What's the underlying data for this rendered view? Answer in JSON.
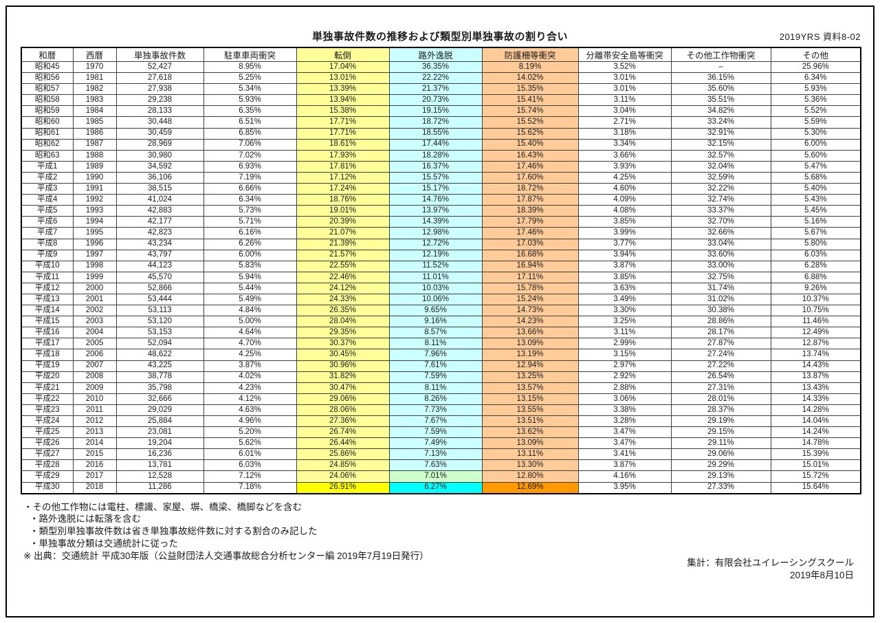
{
  "page": {
    "title": "単独事故件数の推移および類型別単独事故の割り合い",
    "doc_ref": "2019YRS 資料8-02"
  },
  "colors": {
    "col_tentou": "#FFFF99",
    "col_rogai": "#CCFFFF",
    "col_bougosaku": "#FFCC99",
    "highlight_yellow": "#FFFF00",
    "highlight_cyan": "#00FFFF",
    "highlight_orange": "#FF9900",
    "highlight_green": "#CCFFCC"
  },
  "table": {
    "columns": [
      {
        "label": "和暦",
        "bg": ""
      },
      {
        "label": "西暦",
        "bg": ""
      },
      {
        "label": "単独事故件数",
        "bg": ""
      },
      {
        "label": "駐車車両衝突",
        "bg": ""
      },
      {
        "label": "転倒",
        "bg": "#FFFF99"
      },
      {
        "label": "路外逸脱",
        "bg": "#CCFFFF"
      },
      {
        "label": "防護柵等衝突",
        "bg": "#FFCC99"
      },
      {
        "label": "分離帯安全島等衝突",
        "bg": ""
      },
      {
        "label": "その他工作物衝突",
        "bg": ""
      },
      {
        "label": "その他",
        "bg": ""
      }
    ],
    "rows": [
      [
        "昭和45",
        "1970",
        "52,427",
        "8.95%",
        "17.04%",
        "36.35%",
        "8.19%",
        "3.52%",
        "–",
        "25.96%"
      ],
      [
        "昭和56",
        "1981",
        "27,618",
        "5.25%",
        "13.01%",
        "22.22%",
        "14.02%",
        "3.01%",
        "36.15%",
        "6.34%"
      ],
      [
        "昭和57",
        "1982",
        "27,938",
        "5.34%",
        "13.39%",
        "21.37%",
        "15.35%",
        "3.01%",
        "35.60%",
        "5.93%"
      ],
      [
        "昭和58",
        "1983",
        "29,238",
        "5.93%",
        "13.94%",
        "20.73%",
        "15.41%",
        "3.11%",
        "35.51%",
        "5.36%"
      ],
      [
        "昭和59",
        "1984",
        "28,133",
        "6.35%",
        "15.38%",
        "19.15%",
        "15.74%",
        "3.04%",
        "34.82%",
        "5.52%"
      ],
      [
        "昭和60",
        "1985",
        "30,448",
        "6.51%",
        "17.71%",
        "18.72%",
        "15.52%",
        "2.71%",
        "33.24%",
        "5.59%"
      ],
      [
        "昭和61",
        "1986",
        "30,459",
        "6.85%",
        "17.71%",
        "18.55%",
        "15.62%",
        "3.18%",
        "32.91%",
        "5.30%"
      ],
      [
        "昭和62",
        "1987",
        "28,969",
        "7.06%",
        "18.61%",
        "17.44%",
        "15.40%",
        "3.34%",
        "32.15%",
        "6.00%"
      ],
      [
        "昭和63",
        "1988",
        "30,980",
        "7.02%",
        "17.93%",
        "18.28%",
        "16.43%",
        "3.66%",
        "32.57%",
        "5.60%"
      ],
      [
        "平成1",
        "1989",
        "34,592",
        "6.93%",
        "17.81%",
        "16.37%",
        "17.46%",
        "3.93%",
        "32.04%",
        "5.47%"
      ],
      [
        "平成2",
        "1990",
        "36,106",
        "7.19%",
        "17.12%",
        "15.57%",
        "17.60%",
        "4.25%",
        "32.59%",
        "5.68%"
      ],
      [
        "平成3",
        "1991",
        "38,515",
        "6.66%",
        "17.24%",
        "15.17%",
        "18.72%",
        "4.60%",
        "32.22%",
        "5.40%"
      ],
      [
        "平成4",
        "1992",
        "41,024",
        "6.34%",
        "18.76%",
        "14.76%",
        "17.87%",
        "4.09%",
        "32.74%",
        "5.43%"
      ],
      [
        "平成5",
        "1993",
        "42,883",
        "5.73%",
        "19.01%",
        "13.97%",
        "18.39%",
        "4.08%",
        "33.37%",
        "5.45%"
      ],
      [
        "平成6",
        "1994",
        "42,177",
        "5.71%",
        "20.39%",
        "14.39%",
        "17.79%",
        "3.85%",
        "32.70%",
        "5.16%"
      ],
      [
        "平成7",
        "1995",
        "42,823",
        "6.16%",
        "21.07%",
        "12.98%",
        "17.46%",
        "3.99%",
        "32.66%",
        "5.67%"
      ],
      [
        "平成8",
        "1996",
        "43,234",
        "6.26%",
        "21.39%",
        "12.72%",
        "17.03%",
        "3.77%",
        "33.04%",
        "5.80%"
      ],
      [
        "平成9",
        "1997",
        "43,797",
        "6.00%",
        "21.57%",
        "12.19%",
        "16.68%",
        "3.94%",
        "33.60%",
        "6.03%"
      ],
      [
        "平成10",
        "1998",
        "44,123",
        "5.83%",
        "22.55%",
        "11.52%",
        "16.94%",
        "3.87%",
        "33.00%",
        "6.28%"
      ],
      [
        "平成11",
        "1999",
        "45,570",
        "5.94%",
        "22.46%",
        "11.01%",
        "17.11%",
        "3.85%",
        "32.75%",
        "6.88%"
      ],
      [
        "平成12",
        "2000",
        "52,866",
        "5.44%",
        "24.12%",
        "10.03%",
        "15.78%",
        "3.63%",
        "31.74%",
        "9.26%"
      ],
      [
        "平成13",
        "2001",
        "53,444",
        "5.49%",
        "24.33%",
        "10.06%",
        "15.24%",
        "3.49%",
        "31.02%",
        "10.37%"
      ],
      [
        "平成14",
        "2002",
        "53,113",
        "4.84%",
        "26.35%",
        "9.65%",
        "14.73%",
        "3.30%",
        "30.38%",
        "10.75%"
      ],
      [
        "平成15",
        "2003",
        "53,120",
        "5.00%",
        "28.04%",
        "9.16%",
        "14.23%",
        "3.25%",
        "28.86%",
        "11.46%"
      ],
      [
        "平成16",
        "2004",
        "53,153",
        "4.64%",
        "29.35%",
        "8.57%",
        "13.66%",
        "3.11%",
        "28.17%",
        "12.49%"
      ],
      [
        "平成17",
        "2005",
        "52,094",
        "4.70%",
        "30.37%",
        "8.11%",
        "13.09%",
        "2.99%",
        "27.87%",
        "12.87%"
      ],
      [
        "平成18",
        "2006",
        "48,622",
        "4.25%",
        "30.45%",
        "7.96%",
        "13.19%",
        "3.15%",
        "27.24%",
        "13.74%"
      ],
      [
        "平成19",
        "2007",
        "43,225",
        "3.87%",
        "30.96%",
        "7.61%",
        "12.94%",
        "2.97%",
        "27.22%",
        "14.43%"
      ],
      [
        "平成20",
        "2008",
        "38,778",
        "4.02%",
        "31.82%",
        "7.59%",
        "13.25%",
        "2.92%",
        "26.54%",
        "13.87%"
      ],
      [
        "平成21",
        "2009",
        "35,798",
        "4.23%",
        "30.47%",
        "8.11%",
        "13.57%",
        "2.88%",
        "27.31%",
        "13.43%"
      ],
      [
        "平成22",
        "2010",
        "32,666",
        "4.12%",
        "29.06%",
        "8.26%",
        "13.15%",
        "3.06%",
        "28.01%",
        "14.33%"
      ],
      [
        "平成23",
        "2011",
        "29,029",
        "4.63%",
        "28.06%",
        "7.73%",
        "13.55%",
        "3.38%",
        "28.37%",
        "14.28%"
      ],
      [
        "平成24",
        "2012",
        "25,884",
        "4.96%",
        "27.36%",
        "7.67%",
        "13.51%",
        "3.28%",
        "29.19%",
        "14.04%"
      ],
      [
        "平成25",
        "2013",
        "23,081",
        "5.20%",
        "26.74%",
        "7.59%",
        "13.62%",
        "3.47%",
        "29.15%",
        "14.24%"
      ],
      [
        "平成26",
        "2014",
        "19,204",
        "5.62%",
        "26.44%",
        "7.49%",
        "13.09%",
        "3.47%",
        "29.11%",
        "14.78%"
      ],
      [
        "平成27",
        "2015",
        "16,236",
        "6.01%",
        "25.86%",
        "7.13%",
        "13.11%",
        "3.41%",
        "29.06%",
        "15.39%"
      ],
      [
        "平成28",
        "2016",
        "13,781",
        "6.03%",
        "24.85%",
        "7.63%",
        "13.30%",
        "3.87%",
        "29.29%",
        "15.01%"
      ],
      [
        "平成29",
        "2017",
        "12,528",
        "7.12%",
        "24.06%",
        "7.01%",
        "12.80%",
        "4.16%",
        "29.13%",
        "15.72%"
      ],
      [
        "平成30",
        "2018",
        "11,286",
        "7.18%",
        "26.91%",
        "6.27%",
        "12.69%",
        "3.95%",
        "27.33%",
        "15.64%"
      ]
    ],
    "highlight_cells": [
      {
        "row": 37,
        "col": 5,
        "bg": "#CCFFCC"
      },
      {
        "row": 38,
        "col": 4,
        "bg": "#FFFF00"
      },
      {
        "row": 38,
        "col": 5,
        "bg": "#00FFFF"
      },
      {
        "row": 38,
        "col": 6,
        "bg": "#FF9900"
      }
    ]
  },
  "notes": [
    "・その他工作物には電柱、標識、家屋、塀、橋梁、橋脚などを含む",
    "・路外逸脱には転落を含む",
    "・類型別単独事故件数は省き単独事故総件数に対する割合のみ記した",
    "・単独事故分類は交通統計に従った",
    "※ 出典：交通統計 平成30年版（公益財団法人交通事故総合分析センター編 2019年7月19日発行）"
  ],
  "credit": {
    "by": "集計：有限会社ユイレーシングスクール",
    "date": "2019年8月10日"
  }
}
